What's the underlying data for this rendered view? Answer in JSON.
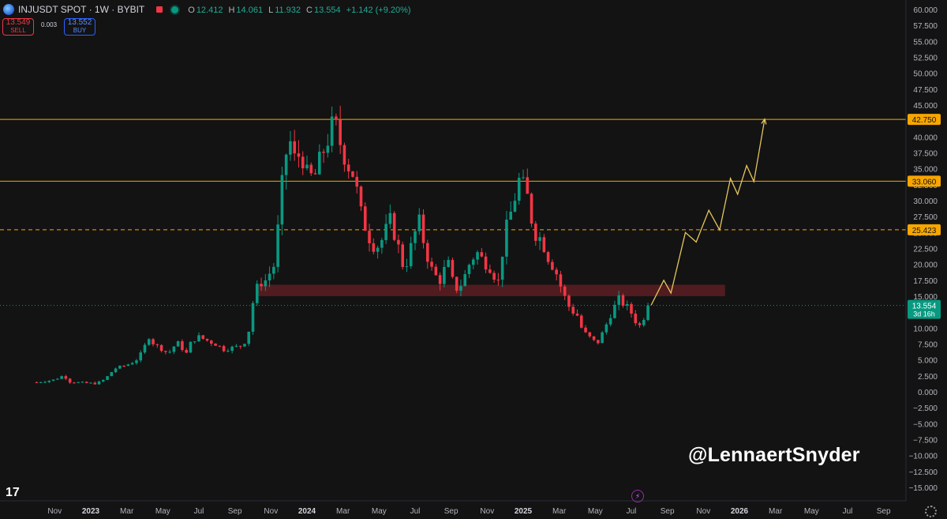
{
  "header": {
    "symbol": "INJUSDT SPOT · 1W · BYBIT",
    "ohlc": [
      {
        "k": "O",
        "v": "12.412"
      },
      {
        "k": "H",
        "v": "14.061"
      },
      {
        "k": "L",
        "v": "11.932"
      },
      {
        "k": "C",
        "v": "13.554"
      },
      {
        "k": "",
        "v": "+1.142 (+9.20%)"
      }
    ]
  },
  "trade": {
    "sell_price": "13.549",
    "sell_label": "SELL",
    "spread": "0.003",
    "buy_price": "13.552",
    "buy_label": "BUY"
  },
  "watermark": "@LennaertSnyder",
  "tv_logo": "17",
  "colors": {
    "up": "#089981",
    "down": "#f23645",
    "level": "#f7a600",
    "zone": "#5c1e22",
    "projection": "#e6c65c",
    "background": "#131313"
  },
  "chart_data": {
    "type": "candlestick",
    "timeframe": "1W",
    "y_axis": {
      "range": [
        -16.5,
        61.5
      ],
      "ticks": [
        "60.000",
        "57.500",
        "55.000",
        "52.500",
        "50.000",
        "47.500",
        "45.000",
        "42.500",
        "40.000",
        "37.500",
        "35.000",
        "32.500",
        "30.000",
        "27.500",
        "25.000",
        "22.500",
        "20.000",
        "17.500",
        "15.000",
        "12.500",
        "10.000",
        "7.500",
        "5.000",
        "2.500",
        "0.000",
        "−2.500",
        "−5.000",
        "−7.500",
        "−10.000",
        "−12.500",
        "−15.000"
      ]
    },
    "x_axis": {
      "labels": [
        {
          "label": "Nov",
          "month": -2,
          "bold": false
        },
        {
          "label": "2023",
          "month": 0,
          "bold": true
        },
        {
          "label": "Mar",
          "month": 2,
          "bold": false
        },
        {
          "label": "May",
          "month": 4,
          "bold": false
        },
        {
          "label": "Jul",
          "month": 6,
          "bold": false
        },
        {
          "label": "Sep",
          "month": 8,
          "bold": false
        },
        {
          "label": "Nov",
          "month": 10,
          "bold": false
        },
        {
          "label": "2024",
          "month": 12,
          "bold": true
        },
        {
          "label": "Mar",
          "month": 14,
          "bold": false
        },
        {
          "label": "May",
          "month": 16,
          "bold": false
        },
        {
          "label": "Jul",
          "month": 18,
          "bold": false
        },
        {
          "label": "Sep",
          "month": 20,
          "bold": false
        },
        {
          "label": "Nov",
          "month": 22,
          "bold": false
        },
        {
          "label": "2025",
          "month": 24,
          "bold": true
        },
        {
          "label": "Mar",
          "month": 26,
          "bold": false
        },
        {
          "label": "May",
          "month": 28,
          "bold": false
        },
        {
          "label": "Jul",
          "month": 30,
          "bold": false
        },
        {
          "label": "Sep",
          "month": 32,
          "bold": false
        },
        {
          "label": "Nov",
          "month": 34,
          "bold": false
        },
        {
          "label": "2026",
          "month": 36,
          "bold": true
        },
        {
          "label": "Mar",
          "month": 38,
          "bold": false
        },
        {
          "label": "May",
          "month": 40,
          "bold": false
        },
        {
          "label": "Jul",
          "month": 42,
          "bold": false
        },
        {
          "label": "Sep",
          "month": 44,
          "bold": false
        }
      ]
    },
    "price_path": [
      [
        -3.0,
        1.5
      ],
      [
        -2.5,
        1.7
      ],
      [
        -2.0,
        1.9
      ],
      [
        -1.5,
        2.6
      ],
      [
        -1.2,
        1.6
      ],
      [
        -0.5,
        1.4
      ],
      [
        0.2,
        1.3
      ],
      [
        0.6,
        1.6
      ],
      [
        1.0,
        2.6
      ],
      [
        1.3,
        3.6
      ],
      [
        1.6,
        3.9
      ],
      [
        2.0,
        4.2
      ],
      [
        2.5,
        4.9
      ],
      [
        2.9,
        6.4
      ],
      [
        3.2,
        8.8
      ],
      [
        3.5,
        7.5
      ],
      [
        3.9,
        6.8
      ],
      [
        4.3,
        6.0
      ],
      [
        4.8,
        7.8
      ],
      [
        5.3,
        6.0
      ],
      [
        5.6,
        8.0
      ],
      [
        6.0,
        8.6
      ],
      [
        6.5,
        8.0
      ],
      [
        7.0,
        7.4
      ],
      [
        7.4,
        6.6
      ],
      [
        7.8,
        6.9
      ],
      [
        8.3,
        7.2
      ],
      [
        8.7,
        8.3
      ],
      [
        9.0,
        14.0
      ],
      [
        9.3,
        17.0
      ],
      [
        9.7,
        17.5
      ],
      [
        10.2,
        20.0
      ],
      [
        10.4,
        26.0
      ],
      [
        10.7,
        35.0
      ],
      [
        11.0,
        40.0
      ],
      [
        11.3,
        36.5
      ],
      [
        11.7,
        37.5
      ],
      [
        12.0,
        34.0
      ],
      [
        12.4,
        33.5
      ],
      [
        12.8,
        37.0
      ],
      [
        13.2,
        40.0
      ],
      [
        13.5,
        42.5
      ],
      [
        13.9,
        38.5
      ],
      [
        14.3,
        35.5
      ],
      [
        14.6,
        34.0
      ],
      [
        15.0,
        28.0
      ],
      [
        15.4,
        24.5
      ],
      [
        15.8,
        22.5
      ],
      [
        16.2,
        24.0
      ],
      [
        16.6,
        27.0
      ],
      [
        17.0,
        23.5
      ],
      [
        17.4,
        19.0
      ],
      [
        17.8,
        23.0
      ],
      [
        18.2,
        27.0
      ],
      [
        18.6,
        22.0
      ],
      [
        19.0,
        18.5
      ],
      [
        19.4,
        17.5
      ],
      [
        19.8,
        20.5
      ],
      [
        20.2,
        16.0
      ],
      [
        20.6,
        17.0
      ],
      [
        21.0,
        20.0
      ],
      [
        21.4,
        22.0
      ],
      [
        21.8,
        20.5
      ],
      [
        22.2,
        19.5
      ],
      [
        22.6,
        17.0
      ],
      [
        23.0,
        25.0
      ],
      [
        23.4,
        29.0
      ],
      [
        23.8,
        33.5
      ],
      [
        24.2,
        31.0
      ],
      [
        24.6,
        25.0
      ],
      [
        25.0,
        24.0
      ],
      [
        25.4,
        21.0
      ],
      [
        25.8,
        19.0
      ],
      [
        26.2,
        15.5
      ],
      [
        26.6,
        13.0
      ],
      [
        27.0,
        12.0
      ],
      [
        27.3,
        9.5
      ],
      [
        27.7,
        8.5
      ],
      [
        28.1,
        7.5
      ],
      [
        28.5,
        9.8
      ],
      [
        28.9,
        12.5
      ],
      [
        29.3,
        14.5
      ],
      [
        29.7,
        13.5
      ],
      [
        30.1,
        12.0
      ],
      [
        30.4,
        10.0
      ],
      [
        30.8,
        12.4
      ],
      [
        31.0,
        13.6
      ]
    ],
    "levels": [
      {
        "value": 42.75,
        "label": "42.750",
        "style": "solid"
      },
      {
        "value": 33.06,
        "label": "33.060",
        "style": "solid"
      },
      {
        "value": 25.423,
        "label": "25.423",
        "style": "dashed"
      }
    ],
    "zone": {
      "from_month": 9.3,
      "to_month": 35.2,
      "low": 15.0,
      "high": 16.8
    },
    "projection": [
      [
        31.1,
        13.6
      ],
      [
        31.8,
        17.5
      ],
      [
        32.2,
        15.5
      ],
      [
        33.0,
        25.0
      ],
      [
        33.6,
        23.5
      ],
      [
        34.3,
        28.5
      ],
      [
        34.9,
        25.4
      ],
      [
        35.5,
        33.5
      ],
      [
        35.9,
        31.0
      ],
      [
        36.4,
        35.5
      ],
      [
        36.8,
        33.0
      ],
      [
        37.4,
        42.8
      ]
    ],
    "current_price": {
      "value": 13.554,
      "label": "13.554",
      "countdown": "3d 16h"
    }
  }
}
